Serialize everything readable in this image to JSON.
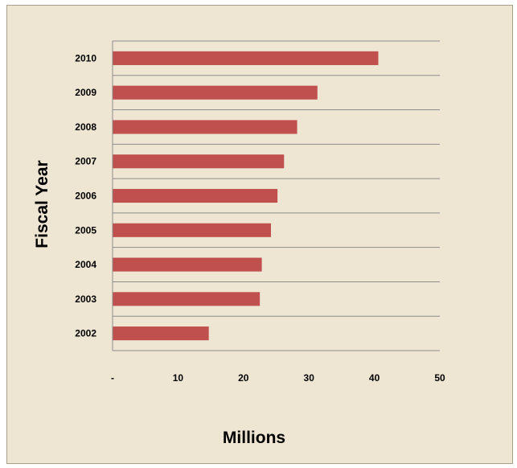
{
  "chart_data": {
    "type": "bar",
    "orientation": "horizontal",
    "categories": [
      "2002",
      "2003",
      "2004",
      "2005",
      "2006",
      "2007",
      "2008",
      "2009",
      "2010"
    ],
    "values": [
      14.7,
      22.5,
      22.8,
      24.2,
      25.2,
      26.2,
      28.2,
      31.3,
      40.6
    ],
    "x_ticks": [
      "-",
      "10",
      "20",
      "30",
      "40",
      "50"
    ],
    "xlim": [
      0,
      50
    ],
    "xlabel": "Millions",
    "ylabel": "Fiscal Year",
    "grid": true,
    "legend": "none",
    "colors": {
      "bar": "#c0504d",
      "background": "#eee5d3",
      "gridline": "#8c8c8c",
      "axis": "#8c8c8c"
    }
  }
}
